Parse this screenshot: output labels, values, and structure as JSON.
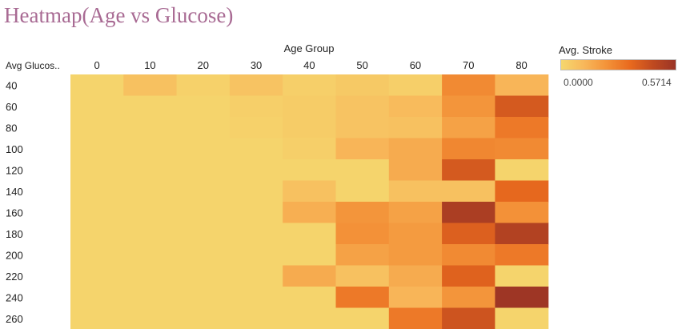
{
  "chart_data": {
    "type": "heatmap",
    "title": "Heatmap(Age vs Glucose)",
    "xlabel": "Age Group",
    "ylabel": "Avg Glucos..",
    "x": [
      "0",
      "10",
      "20",
      "30",
      "40",
      "50",
      "60",
      "70",
      "80"
    ],
    "y": [
      "40",
      "60",
      "80",
      "100",
      "120",
      "140",
      "160",
      "180",
      "200",
      "220",
      "240",
      "260"
    ],
    "values": [
      [
        0.01,
        0.08,
        0.02,
        0.07,
        0.03,
        0.05,
        0.03,
        0.25,
        0.12
      ],
      [
        0.01,
        0.01,
        0.01,
        0.03,
        0.04,
        0.07,
        0.1,
        0.22,
        0.4
      ],
      [
        0.01,
        0.01,
        0.01,
        0.02,
        0.04,
        0.07,
        0.08,
        0.18,
        0.3
      ],
      [
        0.01,
        0.01,
        0.01,
        0.01,
        0.03,
        0.12,
        0.15,
        0.26,
        0.25
      ],
      [
        0.01,
        0.01,
        0.01,
        0.01,
        0.01,
        0.01,
        0.15,
        0.4,
        0.01
      ],
      [
        0.01,
        0.01,
        0.01,
        0.01,
        0.08,
        0.01,
        0.08,
        0.08,
        0.35
      ],
      [
        0.01,
        0.01,
        0.01,
        0.01,
        0.14,
        0.22,
        0.18,
        0.52,
        0.23
      ],
      [
        0.01,
        0.01,
        0.01,
        0.01,
        0.01,
        0.23,
        0.2,
        0.38,
        0.5
      ],
      [
        0.01,
        0.01,
        0.01,
        0.01,
        0.01,
        0.18,
        0.2,
        0.25,
        0.3
      ],
      [
        0.01,
        0.01,
        0.01,
        0.01,
        0.15,
        0.08,
        0.15,
        0.37,
        0.01
      ],
      [
        0.01,
        0.01,
        0.01,
        0.01,
        0.01,
        0.3,
        0.12,
        0.22,
        0.56
      ],
      [
        0.01,
        0.01,
        0.01,
        0.01,
        0.01,
        0.01,
        0.3,
        0.42,
        0.01
      ]
    ],
    "legend": {
      "title": "Avg. Stroke",
      "min_label": "0.0000",
      "max_label": "0.5714",
      "min": 0,
      "max": 0.5714,
      "placement": "top-right"
    },
    "color_scale": [
      "#f5d76e",
      "#f8b75a",
      "#f39238",
      "#e96a1e",
      "#c04a20",
      "#9a3426"
    ],
    "grid": false
  }
}
